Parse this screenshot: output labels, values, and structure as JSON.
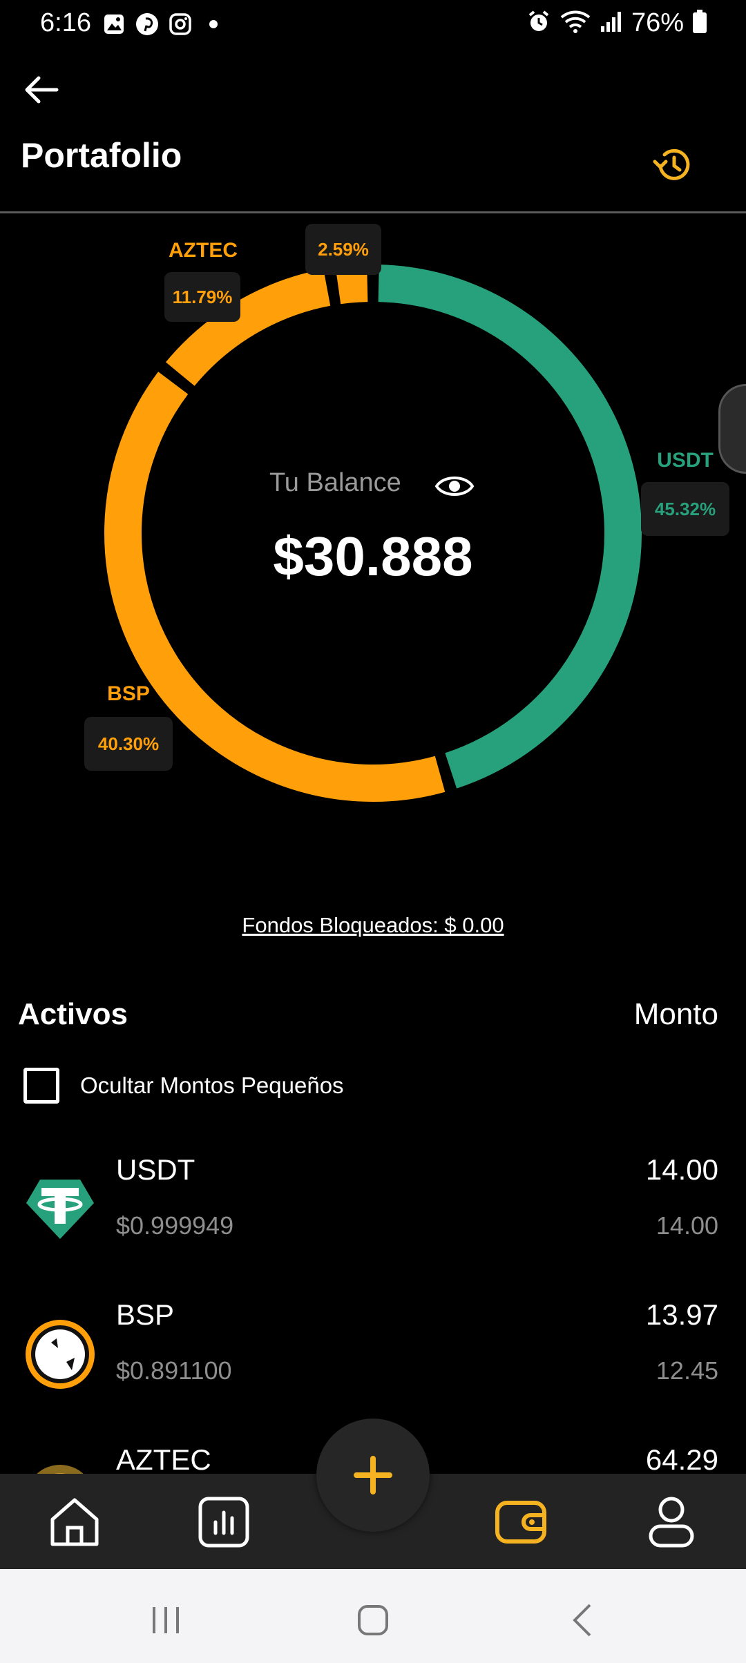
{
  "status_bar": {
    "time": "6:16",
    "battery": "76%"
  },
  "header": {
    "title": "Portafolio"
  },
  "colors": {
    "accent": "#FF9F0A",
    "usdt": "#26A17B",
    "gold": "#F5B321"
  },
  "chart_data": {
    "type": "pie",
    "title": "",
    "slices": [
      {
        "name": "USDT",
        "value": 45.32,
        "percent_label": "45.32%"
      },
      {
        "name": "BSP",
        "value": 40.3,
        "percent_label": "40.30%"
      },
      {
        "name": "AZTEC",
        "value": 11.79,
        "percent_label": "11.79%"
      },
      {
        "name": "",
        "value": 2.59,
        "percent_label": "2.59%"
      }
    ]
  },
  "balance": {
    "label": "Tu Balance",
    "value": "$30.888"
  },
  "locked_funds": "Fondos Bloqueados: $ 0.00",
  "assets": {
    "title": "Activos",
    "amount_header": "Monto",
    "hide_small_label": "Ocultar Montos Pequeños",
    "hide_small_checked": false,
    "items": [
      {
        "name": "USDT",
        "price": "$0.999949",
        "quantity": "14.00",
        "value": "14.00",
        "logo": "tether-logo"
      },
      {
        "name": "BSP",
        "price": "$0.891100",
        "quantity": "13.97",
        "value": "12.45",
        "logo": "bsp-logo"
      },
      {
        "name": "AZTEC",
        "price": "",
        "quantity": "64.29",
        "value": "",
        "logo": "aztec-logo"
      }
    ]
  },
  "bottom_nav": {
    "items": [
      "home-icon",
      "chart-icon",
      "wallet-icon",
      "profile-icon"
    ],
    "active": "wallet-icon",
    "fab": "plus-icon"
  }
}
